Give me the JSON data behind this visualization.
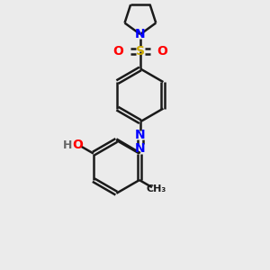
{
  "bg_color": "#ebebeb",
  "bond_color": "#1a1a1a",
  "bond_width": 1.8,
  "N_color": "#0000ff",
  "O_color": "#ff0000",
  "S_color": "#ccaa00",
  "H_color": "#666666",
  "C_color": "#1a1a1a",
  "figsize": [
    3.0,
    3.0
  ],
  "dpi": 100,
  "xlim": [
    0,
    10
  ],
  "ylim": [
    0,
    10
  ]
}
